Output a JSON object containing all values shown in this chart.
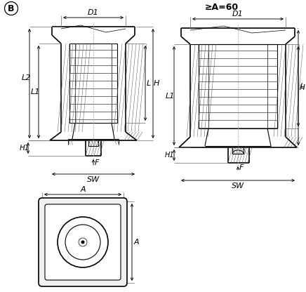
{
  "bg": "#ffffff",
  "lc": "#000000",
  "label_B": "B",
  "label_geA60": "≥A=60",
  "label_D1": "D1",
  "label_L2": "L2",
  "label_L1": "L1",
  "label_L": "L",
  "label_H": "H",
  "label_H1": "H1",
  "label_F": "F",
  "label_SW": "SW",
  "label_A": "A"
}
